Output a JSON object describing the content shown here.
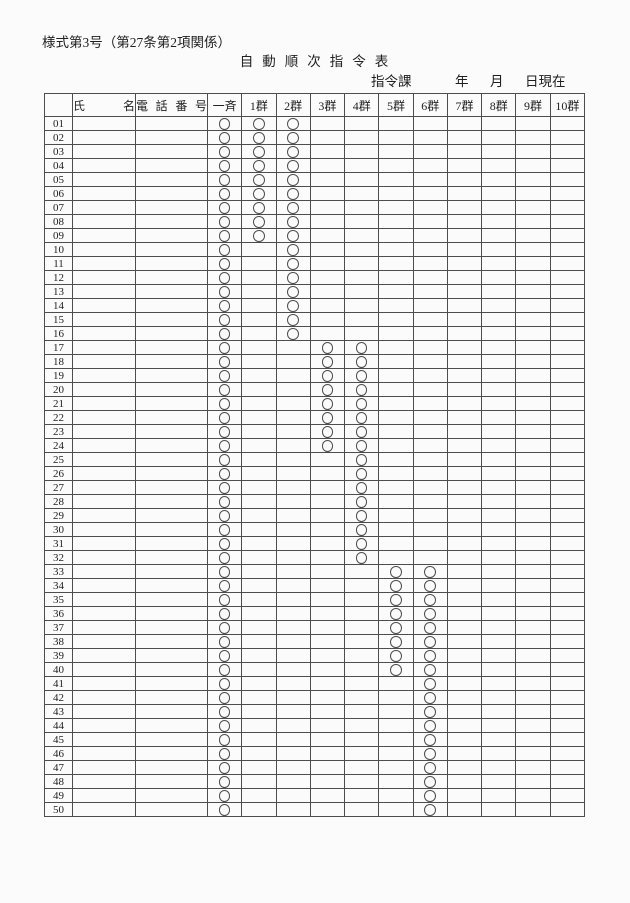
{
  "page": {
    "form_label": "様式第3号（第27条第2項関係）",
    "title": "自動順次指令表",
    "date_line": {
      "department": "指令課",
      "year_label": "年",
      "month_label": "月",
      "day_label": "日現在"
    }
  },
  "colors": {
    "paper": "#fbfbfb",
    "ink": "#1f1f1f",
    "grid": "#4d4d4d"
  },
  "table": {
    "columns": [
      "",
      "氏名",
      "電話番号",
      "一斉",
      "1群",
      "2群",
      "3群",
      "4群",
      "5群",
      "6群",
      "7群",
      "8群",
      "9群",
      "10群"
    ],
    "mark_symbol": "○",
    "rows": [
      {
        "no": "01",
        "name": "",
        "phone": "",
        "marks": [
          1,
          1,
          1,
          0,
          0,
          0,
          0,
          0,
          0,
          0,
          0
        ]
      },
      {
        "no": "02",
        "name": "",
        "phone": "",
        "marks": [
          1,
          1,
          1,
          0,
          0,
          0,
          0,
          0,
          0,
          0,
          0
        ]
      },
      {
        "no": "03",
        "name": "",
        "phone": "",
        "marks": [
          1,
          1,
          1,
          0,
          0,
          0,
          0,
          0,
          0,
          0,
          0
        ]
      },
      {
        "no": "04",
        "name": "",
        "phone": "",
        "marks": [
          1,
          1,
          1,
          0,
          0,
          0,
          0,
          0,
          0,
          0,
          0
        ]
      },
      {
        "no": "05",
        "name": "",
        "phone": "",
        "marks": [
          1,
          1,
          1,
          0,
          0,
          0,
          0,
          0,
          0,
          0,
          0
        ]
      },
      {
        "no": "06",
        "name": "",
        "phone": "",
        "marks": [
          1,
          1,
          1,
          0,
          0,
          0,
          0,
          0,
          0,
          0,
          0
        ]
      },
      {
        "no": "07",
        "name": "",
        "phone": "",
        "marks": [
          1,
          1,
          1,
          0,
          0,
          0,
          0,
          0,
          0,
          0,
          0
        ]
      },
      {
        "no": "08",
        "name": "",
        "phone": "",
        "marks": [
          1,
          1,
          1,
          0,
          0,
          0,
          0,
          0,
          0,
          0,
          0
        ]
      },
      {
        "no": "09",
        "name": "",
        "phone": "",
        "marks": [
          1,
          1,
          1,
          0,
          0,
          0,
          0,
          0,
          0,
          0,
          0
        ]
      },
      {
        "no": "10",
        "name": "",
        "phone": "",
        "marks": [
          1,
          0,
          1,
          0,
          0,
          0,
          0,
          0,
          0,
          0,
          0
        ]
      },
      {
        "no": "11",
        "name": "",
        "phone": "",
        "marks": [
          1,
          0,
          1,
          0,
          0,
          0,
          0,
          0,
          0,
          0,
          0
        ]
      },
      {
        "no": "12",
        "name": "",
        "phone": "",
        "marks": [
          1,
          0,
          1,
          0,
          0,
          0,
          0,
          0,
          0,
          0,
          0
        ]
      },
      {
        "no": "13",
        "name": "",
        "phone": "",
        "marks": [
          1,
          0,
          1,
          0,
          0,
          0,
          0,
          0,
          0,
          0,
          0
        ]
      },
      {
        "no": "14",
        "name": "",
        "phone": "",
        "marks": [
          1,
          0,
          1,
          0,
          0,
          0,
          0,
          0,
          0,
          0,
          0
        ]
      },
      {
        "no": "15",
        "name": "",
        "phone": "",
        "marks": [
          1,
          0,
          1,
          0,
          0,
          0,
          0,
          0,
          0,
          0,
          0
        ]
      },
      {
        "no": "16",
        "name": "",
        "phone": "",
        "marks": [
          1,
          0,
          1,
          0,
          0,
          0,
          0,
          0,
          0,
          0,
          0
        ]
      },
      {
        "no": "17",
        "name": "",
        "phone": "",
        "marks": [
          1,
          0,
          0,
          1,
          1,
          0,
          0,
          0,
          0,
          0,
          0
        ]
      },
      {
        "no": "18",
        "name": "",
        "phone": "",
        "marks": [
          1,
          0,
          0,
          1,
          1,
          0,
          0,
          0,
          0,
          0,
          0
        ]
      },
      {
        "no": "19",
        "name": "",
        "phone": "",
        "marks": [
          1,
          0,
          0,
          1,
          1,
          0,
          0,
          0,
          0,
          0,
          0
        ]
      },
      {
        "no": "20",
        "name": "",
        "phone": "",
        "marks": [
          1,
          0,
          0,
          1,
          1,
          0,
          0,
          0,
          0,
          0,
          0
        ]
      },
      {
        "no": "21",
        "name": "",
        "phone": "",
        "marks": [
          1,
          0,
          0,
          1,
          1,
          0,
          0,
          0,
          0,
          0,
          0
        ]
      },
      {
        "no": "22",
        "name": "",
        "phone": "",
        "marks": [
          1,
          0,
          0,
          1,
          1,
          0,
          0,
          0,
          0,
          0,
          0
        ]
      },
      {
        "no": "23",
        "name": "",
        "phone": "",
        "marks": [
          1,
          0,
          0,
          1,
          1,
          0,
          0,
          0,
          0,
          0,
          0
        ]
      },
      {
        "no": "24",
        "name": "",
        "phone": "",
        "marks": [
          1,
          0,
          0,
          1,
          1,
          0,
          0,
          0,
          0,
          0,
          0
        ]
      },
      {
        "no": "25",
        "name": "",
        "phone": "",
        "marks": [
          1,
          0,
          0,
          0,
          1,
          0,
          0,
          0,
          0,
          0,
          0
        ]
      },
      {
        "no": "26",
        "name": "",
        "phone": "",
        "marks": [
          1,
          0,
          0,
          0,
          1,
          0,
          0,
          0,
          0,
          0,
          0
        ]
      },
      {
        "no": "27",
        "name": "",
        "phone": "",
        "marks": [
          1,
          0,
          0,
          0,
          1,
          0,
          0,
          0,
          0,
          0,
          0
        ]
      },
      {
        "no": "28",
        "name": "",
        "phone": "",
        "marks": [
          1,
          0,
          0,
          0,
          1,
          0,
          0,
          0,
          0,
          0,
          0
        ]
      },
      {
        "no": "29",
        "name": "",
        "phone": "",
        "marks": [
          1,
          0,
          0,
          0,
          1,
          0,
          0,
          0,
          0,
          0,
          0
        ]
      },
      {
        "no": "30",
        "name": "",
        "phone": "",
        "marks": [
          1,
          0,
          0,
          0,
          1,
          0,
          0,
          0,
          0,
          0,
          0
        ]
      },
      {
        "no": "31",
        "name": "",
        "phone": "",
        "marks": [
          1,
          0,
          0,
          0,
          1,
          0,
          0,
          0,
          0,
          0,
          0
        ]
      },
      {
        "no": "32",
        "name": "",
        "phone": "",
        "marks": [
          1,
          0,
          0,
          0,
          1,
          0,
          0,
          0,
          0,
          0,
          0
        ]
      },
      {
        "no": "33",
        "name": "",
        "phone": "",
        "marks": [
          1,
          0,
          0,
          0,
          0,
          1,
          1,
          0,
          0,
          0,
          0
        ]
      },
      {
        "no": "34",
        "name": "",
        "phone": "",
        "marks": [
          1,
          0,
          0,
          0,
          0,
          1,
          1,
          0,
          0,
          0,
          0
        ]
      },
      {
        "no": "35",
        "name": "",
        "phone": "",
        "marks": [
          1,
          0,
          0,
          0,
          0,
          1,
          1,
          0,
          0,
          0,
          0
        ]
      },
      {
        "no": "36",
        "name": "",
        "phone": "",
        "marks": [
          1,
          0,
          0,
          0,
          0,
          1,
          1,
          0,
          0,
          0,
          0
        ]
      },
      {
        "no": "37",
        "name": "",
        "phone": "",
        "marks": [
          1,
          0,
          0,
          0,
          0,
          1,
          1,
          0,
          0,
          0,
          0
        ]
      },
      {
        "no": "38",
        "name": "",
        "phone": "",
        "marks": [
          1,
          0,
          0,
          0,
          0,
          1,
          1,
          0,
          0,
          0,
          0
        ]
      },
      {
        "no": "39",
        "name": "",
        "phone": "",
        "marks": [
          1,
          0,
          0,
          0,
          0,
          1,
          1,
          0,
          0,
          0,
          0
        ]
      },
      {
        "no": "40",
        "name": "",
        "phone": "",
        "marks": [
          1,
          0,
          0,
          0,
          0,
          1,
          1,
          0,
          0,
          0,
          0
        ]
      },
      {
        "no": "41",
        "name": "",
        "phone": "",
        "marks": [
          1,
          0,
          0,
          0,
          0,
          0,
          1,
          0,
          0,
          0,
          0
        ]
      },
      {
        "no": "42",
        "name": "",
        "phone": "",
        "marks": [
          1,
          0,
          0,
          0,
          0,
          0,
          1,
          0,
          0,
          0,
          0
        ]
      },
      {
        "no": "43",
        "name": "",
        "phone": "",
        "marks": [
          1,
          0,
          0,
          0,
          0,
          0,
          1,
          0,
          0,
          0,
          0
        ]
      },
      {
        "no": "44",
        "name": "",
        "phone": "",
        "marks": [
          1,
          0,
          0,
          0,
          0,
          0,
          1,
          0,
          0,
          0,
          0
        ]
      },
      {
        "no": "45",
        "name": "",
        "phone": "",
        "marks": [
          1,
          0,
          0,
          0,
          0,
          0,
          1,
          0,
          0,
          0,
          0
        ]
      },
      {
        "no": "46",
        "name": "",
        "phone": "",
        "marks": [
          1,
          0,
          0,
          0,
          0,
          0,
          1,
          0,
          0,
          0,
          0
        ]
      },
      {
        "no": "47",
        "name": "",
        "phone": "",
        "marks": [
          1,
          0,
          0,
          0,
          0,
          0,
          1,
          0,
          0,
          0,
          0
        ]
      },
      {
        "no": "48",
        "name": "",
        "phone": "",
        "marks": [
          1,
          0,
          0,
          0,
          0,
          0,
          1,
          0,
          0,
          0,
          0
        ]
      },
      {
        "no": "49",
        "name": "",
        "phone": "",
        "marks": [
          1,
          0,
          0,
          0,
          0,
          0,
          1,
          0,
          0,
          0,
          0
        ]
      },
      {
        "no": "50",
        "name": "",
        "phone": "",
        "marks": [
          1,
          0,
          0,
          0,
          0,
          0,
          1,
          0,
          0,
          0,
          0
        ]
      }
    ]
  }
}
